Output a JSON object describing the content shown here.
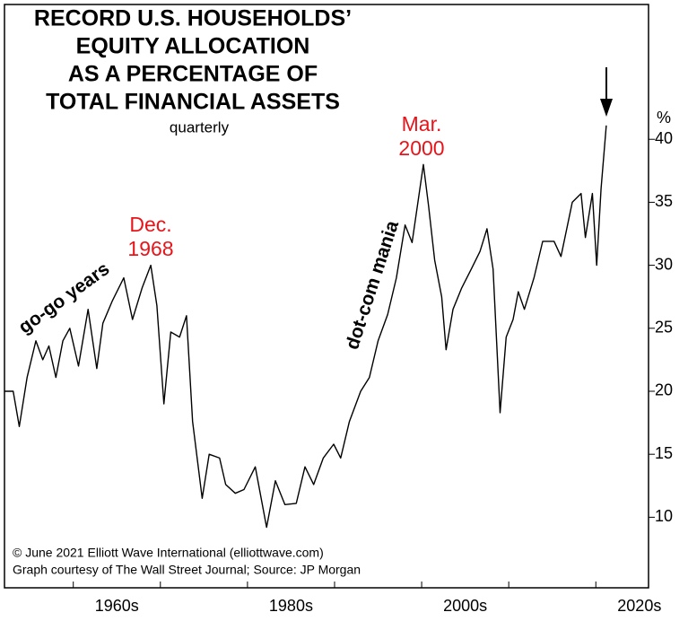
{
  "chart_data": {
    "type": "line",
    "title": [
      "RECORD U.S. HOUSEHOLDS’",
      "EQUITY ALLOCATION",
      "AS A PERCENTAGE OF",
      "TOTAL FINANCIAL ASSETS"
    ],
    "subtitle": "quarterly",
    "y_label": "%",
    "annotations": {
      "dec": [
        "Dec.",
        "1968"
      ],
      "mar": [
        "Mar.",
        "2000"
      ],
      "gogo": "go-go years",
      "dotcom": "dot-com mania"
    },
    "credits": [
      "© June 2021 Elliott Wave International (elliottwave.com)",
      "Graph courtesy of The Wall Street Journal; Source: JP Morgan"
    ],
    "x": [
      1952.1,
      1953.1,
      1953.8,
      1954.7,
      1955.7,
      1956.5,
      1957.2,
      1958,
      1958.8,
      1959.6,
      1960.6,
      1961.7,
      1962.7,
      1963.4,
      1964.5,
      1965.8,
      1966.8,
      1967.9,
      1968.9,
      1969.6,
      1970.4,
      1971.2,
      1972.2,
      1973,
      1973.7,
      1974.8,
      1975.6,
      1976.8,
      1977.5,
      1978.6,
      1979.6,
      1980.9,
      1982.2,
      1983.2,
      1984.3,
      1985.6,
      1986.6,
      1987.6,
      1988.7,
      1989.9,
      1990.7,
      1991.7,
      1993,
      1994,
      1995,
      1996.1,
      1997.1,
      1998.1,
      1998.9,
      2000.2,
      2000.8,
      2001.5,
      2002.3,
      2002.8,
      2003.6,
      2004.6,
      2005.7,
      2006.7,
      2007.5,
      2008.2,
      2009,
      2009.7,
      2010.5,
      2011.1,
      2011.8,
      2012.9,
      2013.9,
      2015.2,
      2016,
      2017.3,
      2018.3,
      2018.8,
      2019.6,
      2020.1,
      2020.6,
      2021.2
    ],
    "series": [
      {
        "name": "Equity allocation",
        "color": "#000000",
        "values": [
          20,
          20,
          17.2,
          21.1,
          24,
          22.5,
          23.6,
          21.1,
          24,
          25,
          22,
          26.5,
          21.8,
          25.4,
          27.2,
          29,
          25.7,
          28.2,
          30,
          26.8,
          19,
          24.7,
          24.3,
          26,
          17.6,
          11.5,
          15,
          14.7,
          12.6,
          11.9,
          12.2,
          14,
          9.2,
          12.9,
          11,
          11.1,
          14,
          12.6,
          14.7,
          15.8,
          14.7,
          17.6,
          20,
          21.1,
          24,
          26.1,
          29,
          33.2,
          31.8,
          38,
          34.7,
          30.4,
          27.5,
          23.3,
          26.5,
          28.2,
          29.7,
          31.1,
          32.9,
          29.7,
          18.3,
          24.3,
          25.7,
          27.9,
          26.5,
          29,
          31.9,
          31.9,
          30.7,
          35,
          35.7,
          32.2,
          35.7,
          30,
          36.1,
          41.1
        ]
      }
    ],
    "xlim": [
      1952.1,
      2026.05
    ],
    "ylim": [
      4.4,
      50.7
    ],
    "xticks": [
      {
        "value": 1960,
        "label": "1960s"
      },
      {
        "value": 1980,
        "label": "1980s"
      },
      {
        "value": 2000,
        "label": "2000s"
      },
      {
        "value": 2020,
        "label": "2020s"
      }
    ],
    "yticks": [
      10,
      15,
      20,
      25,
      30,
      35,
      40
    ]
  }
}
